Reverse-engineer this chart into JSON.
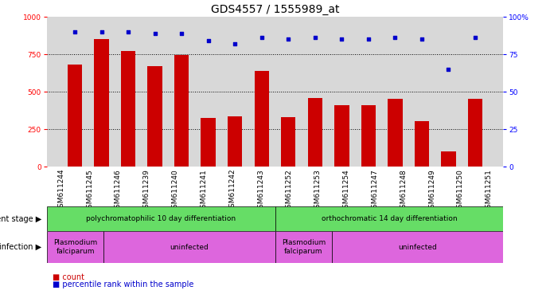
{
  "title": "GDS4557 / 1555989_at",
  "categories": [
    "GSM611244",
    "GSM611245",
    "GSM611246",
    "GSM611239",
    "GSM611240",
    "GSM611241",
    "GSM611242",
    "GSM611243",
    "GSM611252",
    "GSM611253",
    "GSM611254",
    "GSM611247",
    "GSM611248",
    "GSM611249",
    "GSM611250",
    "GSM611251"
  ],
  "counts": [
    680,
    850,
    770,
    670,
    745,
    325,
    335,
    640,
    330,
    460,
    410,
    410,
    455,
    305,
    105,
    455
  ],
  "percentile_ranks": [
    90,
    90,
    90,
    89,
    89,
    84,
    82,
    86,
    85,
    86,
    85,
    85,
    86,
    85,
    65,
    86
  ],
  "bar_color": "#cc0000",
  "dot_color": "#0000cc",
  "ylim_left": [
    0,
    1000
  ],
  "ylim_right": [
    0,
    100
  ],
  "yticks_left": [
    0,
    250,
    500,
    750,
    1000
  ],
  "yticks_right": [
    0,
    25,
    50,
    75,
    100
  ],
  "grid_values": [
    250,
    500,
    750
  ],
  "development_stage_groups": [
    {
      "label": "polychromatophilic 10 day differentiation",
      "start": 0,
      "end": 8,
      "color": "#66dd66"
    },
    {
      "label": "orthochromatic 14 day differentiation",
      "start": 8,
      "end": 16,
      "color": "#66dd66"
    }
  ],
  "infection_groups": [
    {
      "label": "Plasmodium\nfalciparum",
      "start": 0,
      "end": 2,
      "color": "#dd66dd"
    },
    {
      "label": "uninfected",
      "start": 2,
      "end": 8,
      "color": "#dd66dd"
    },
    {
      "label": "Plasmodium\nfalciparum",
      "start": 8,
      "end": 10,
      "color": "#dd66dd"
    },
    {
      "label": "uninfected",
      "start": 10,
      "end": 16,
      "color": "#dd66dd"
    }
  ],
  "legend_count_label": "count",
  "legend_percentile_label": "percentile rank within the sample",
  "development_stage_label": "development stage",
  "infection_label": "infection",
  "background_color": "#ffffff",
  "axis_bg_color": "#d8d8d8",
  "title_fontsize": 10,
  "tick_fontsize": 6.5,
  "label_fontsize": 7.5
}
